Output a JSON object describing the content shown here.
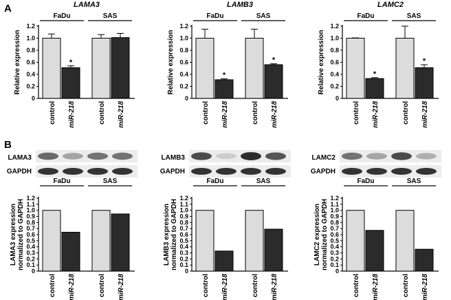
{
  "figure": {
    "panel_letters": [
      "A",
      "B"
    ],
    "groups": [
      "FaDu",
      "SAS"
    ],
    "blot_loading_label": "GAPDH"
  },
  "colors": {
    "control": "#dcdcdc",
    "treatment": "#2b2b2b"
  },
  "chart_data": [
    {
      "type": "bar",
      "panel": "A",
      "title": "LAMA3",
      "ylabel": "Relative expression",
      "ylim": [
        0,
        1.2
      ],
      "yticks": [
        "0",
        "0.2",
        "0.4",
        "0.6",
        "0.8",
        "1.0",
        "1.2"
      ],
      "categories": [
        "control",
        "miR-218",
        "control",
        "miR-218"
      ],
      "groups": [
        "FaDu",
        "SAS"
      ],
      "values": [
        1.0,
        0.51,
        1.0,
        1.01
      ],
      "errors": [
        0.07,
        0.03,
        0.06,
        0.07
      ],
      "significant": [
        false,
        true,
        false,
        false
      ]
    },
    {
      "type": "bar",
      "panel": "A",
      "title": "LAMB3",
      "ylabel": "Relative expression",
      "ylim": [
        0,
        1.2
      ],
      "yticks": [
        "0",
        "0.2",
        "0.4",
        "0.6",
        "0.8",
        "1.0",
        "1.2"
      ],
      "categories": [
        "control",
        "miR-218",
        "control",
        "miR-218"
      ],
      "groups": [
        "FaDu",
        "SAS"
      ],
      "values": [
        1.0,
        0.31,
        1.0,
        0.56
      ],
      "errors": [
        0.15,
        0.015,
        0.15,
        0.015
      ],
      "significant": [
        false,
        true,
        false,
        true
      ]
    },
    {
      "type": "bar",
      "panel": "A",
      "title": "LAMC2",
      "ylabel": "Relative expression",
      "ylim": [
        0,
        1.2
      ],
      "yticks": [
        "0",
        "0.2",
        "0.4",
        "0.6",
        "0.8",
        "1.0",
        "1.2"
      ],
      "categories": [
        "control",
        "miR-218",
        "control",
        "miR-218"
      ],
      "groups": [
        "FaDu",
        "SAS"
      ],
      "values": [
        1.0,
        0.33,
        1.0,
        0.51
      ],
      "errors": [
        0.005,
        0.015,
        0.2,
        0.05
      ],
      "significant": [
        false,
        true,
        false,
        true
      ]
    },
    {
      "type": "bar",
      "panel": "B",
      "blot_label": "LAMA3",
      "ylabel": [
        "LAMA3 expression",
        "normalized to GAPDH"
      ],
      "ylim": [
        0,
        1.2
      ],
      "yticks": [
        "0",
        "0.1",
        "0.2",
        "0.3",
        "0.4",
        "0.5",
        "0.6",
        "0.7",
        "0.8",
        "0.9",
        "1.0",
        "1.1",
        "1.2"
      ],
      "categories": [
        "control",
        "miR-218",
        "control",
        "miR-218"
      ],
      "groups": [
        "FaDu",
        "SAS"
      ],
      "values": [
        1.0,
        0.64,
        1.0,
        0.94
      ],
      "band_intensity": [
        0.65,
        0.35,
        0.6,
        0.6
      ]
    },
    {
      "type": "bar",
      "panel": "B",
      "blot_label": "LAMB3",
      "ylabel": [
        "LAMB3 expression",
        "normalized to GAPDH"
      ],
      "ylim": [
        0,
        1.2
      ],
      "yticks": [
        "0",
        "0.1",
        "0.2",
        "0.3",
        "0.4",
        "0.5",
        "0.6",
        "0.7",
        "0.8",
        "0.9",
        "1.0",
        "1.1",
        "1.2"
      ],
      "categories": [
        "control",
        "miR-218",
        "control",
        "miR-218"
      ],
      "groups": [
        "FaDu",
        "SAS"
      ],
      "values": [
        1.0,
        0.33,
        1.0,
        0.69
      ],
      "band_intensity": [
        0.8,
        0.15,
        0.95,
        0.75
      ]
    },
    {
      "type": "bar",
      "panel": "B",
      "blot_label": "LAMC2",
      "ylabel": [
        "LAMC2 expression",
        "normalized to GAPDH"
      ],
      "ylim": [
        0,
        1.2
      ],
      "yticks": [
        "0",
        "0.1",
        "0.2",
        "0.3",
        "0.4",
        "0.5",
        "0.6",
        "0.7",
        "0.8",
        "0.9",
        "1.0",
        "1.1",
        "1.2"
      ],
      "categories": [
        "control",
        "miR-218",
        "control",
        "miR-218"
      ],
      "groups": [
        "FaDu",
        "SAS"
      ],
      "values": [
        1.0,
        0.67,
        1.0,
        0.36
      ],
      "band_intensity": [
        0.6,
        0.35,
        0.8,
        0.3
      ]
    }
  ]
}
